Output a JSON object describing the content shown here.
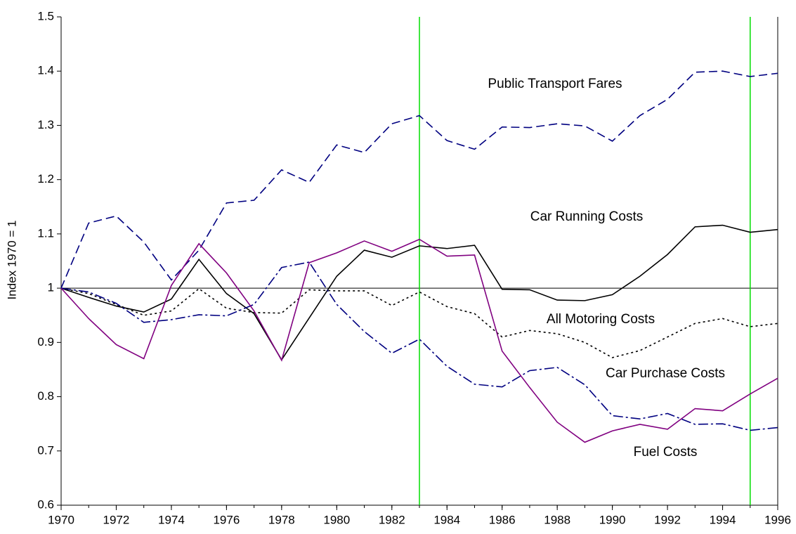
{
  "chart_data": {
    "type": "line",
    "ylabel": "Index 1970 = 1",
    "x": [
      1970,
      1971,
      1972,
      1973,
      1974,
      1975,
      1976,
      1977,
      1978,
      1979,
      1980,
      1981,
      1982,
      1983,
      1984,
      1985,
      1986,
      1987,
      1988,
      1989,
      1990,
      1991,
      1992,
      1993,
      1994,
      1995,
      1996
    ],
    "series": [
      {
        "name": "Public Transport Fares",
        "color": "#000080",
        "style": "dashed",
        "values": [
          1.0,
          1.12,
          1.133,
          1.085,
          1.015,
          1.07,
          1.157,
          1.162,
          1.218,
          1.195,
          1.264,
          1.25,
          1.303,
          1.318,
          1.272,
          1.256,
          1.297,
          1.296,
          1.303,
          1.299,
          1.271,
          1.318,
          1.348,
          1.398,
          1.4,
          1.39,
          1.396
        ]
      },
      {
        "name": "Car Running Costs",
        "color": "#000000",
        "style": "solid",
        "values": [
          1.0,
          0.983,
          0.967,
          0.956,
          0.98,
          1.053,
          0.99,
          0.953,
          0.868,
          0.945,
          1.022,
          1.07,
          1.057,
          1.078,
          1.073,
          1.079,
          0.998,
          0.997,
          0.978,
          0.977,
          0.988,
          1.022,
          1.062,
          1.113,
          1.116,
          1.103,
          1.108
        ]
      },
      {
        "name": "All Motoring Costs",
        "color": "#000000",
        "style": "dotted",
        "values": [
          1.0,
          0.99,
          0.97,
          0.95,
          0.958,
          0.999,
          0.963,
          0.955,
          0.954,
          0.997,
          0.995,
          0.995,
          0.968,
          0.993,
          0.966,
          0.953,
          0.91,
          0.922,
          0.916,
          0.9,
          0.872,
          0.885,
          0.91,
          0.935,
          0.944,
          0.929,
          0.935
        ]
      },
      {
        "name": "Car Purchase Costs",
        "color": "#000080",
        "style": "dashdot",
        "values": [
          1.0,
          0.993,
          0.972,
          0.937,
          0.942,
          0.951,
          0.949,
          0.97,
          1.038,
          1.048,
          0.97,
          0.92,
          0.88,
          0.906,
          0.856,
          0.823,
          0.818,
          0.848,
          0.854,
          0.822,
          0.765,
          0.759,
          0.769,
          0.749,
          0.75,
          0.738,
          0.743
        ]
      },
      {
        "name": "Fuel Costs",
        "color": "#800080",
        "style": "solid",
        "values": [
          1.0,
          0.944,
          0.896,
          0.87,
          1.005,
          1.082,
          1.028,
          0.958,
          0.867,
          1.047,
          1.065,
          1.087,
          1.068,
          1.09,
          1.059,
          1.061,
          0.884,
          0.817,
          0.753,
          0.716,
          0.737,
          0.749,
          0.74,
          0.778,
          0.774,
          0.805,
          0.834
        ]
      }
    ],
    "xlim": [
      1970,
      1996
    ],
    "xticks": [
      1970,
      1972,
      1974,
      1976,
      1978,
      1980,
      1982,
      1984,
      1986,
      1988,
      1990,
      1992,
      1994,
      1996
    ],
    "ylim": [
      0.6,
      1.5
    ],
    "yticks": [
      0.6,
      0.7,
      0.8,
      0.9,
      1,
      1.1,
      1.2,
      1.3,
      1.4,
      1.5
    ],
    "hline": 1,
    "vlines": [
      1983,
      1995
    ],
    "vline_color": "#00dd00"
  }
}
